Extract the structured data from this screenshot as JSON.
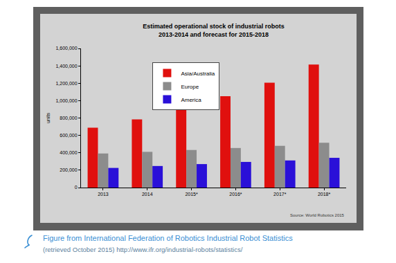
{
  "chart_data": {
    "type": "bar",
    "title": "Estimated operational stock of industrial robots\n2013-2014 and forecast for 2015-2018",
    "y_label": "units",
    "categories": [
      "2013",
      "2014",
      "2015*",
      "2016*",
      "2017*",
      "2018*"
    ],
    "series": [
      {
        "name": "Asia/Australia",
        "color": "#e0100e",
        "values": [
          689000,
          785000,
          915000,
          1050000,
          1205000,
          1415000
        ]
      },
      {
        "name": "Europe",
        "color": "#8c8c8c",
        "values": [
          392000,
          411000,
          432000,
          455000,
          480000,
          515000
        ]
      },
      {
        "name": "America",
        "color": "#2a10d8",
        "values": [
          226000,
          248000,
          270000,
          295000,
          312000,
          342000
        ]
      }
    ],
    "ylim": [
      0,
      1600000
    ],
    "yticks": [
      0,
      {
        "value": 200000,
        "label": "200,000"
      },
      {
        "value": 400000,
        "label": "400,000"
      },
      {
        "value": 600000,
        "label": "600,000"
      },
      {
        "value": 800000,
        "label": "800,000"
      },
      {
        "value": 1000000,
        "label": "1,000,000"
      },
      {
        "value": 1200000,
        "label": "1,200,000"
      },
      {
        "value": 1400000,
        "label": "1,400,000"
      },
      {
        "value": 1600000,
        "label": "1,600,000"
      }
    ],
    "grid": false,
    "legend": "upper left",
    "annotations": [
      {
        "text": "Source: World Robotics 2015"
      }
    ]
  },
  "caption": {
    "title": "Figure from International Federation of Robotics Industrial Robot Statistics",
    "note": "(retrieved October 2015) http://www.ifr.org/industrial-robots/statistics/"
  }
}
